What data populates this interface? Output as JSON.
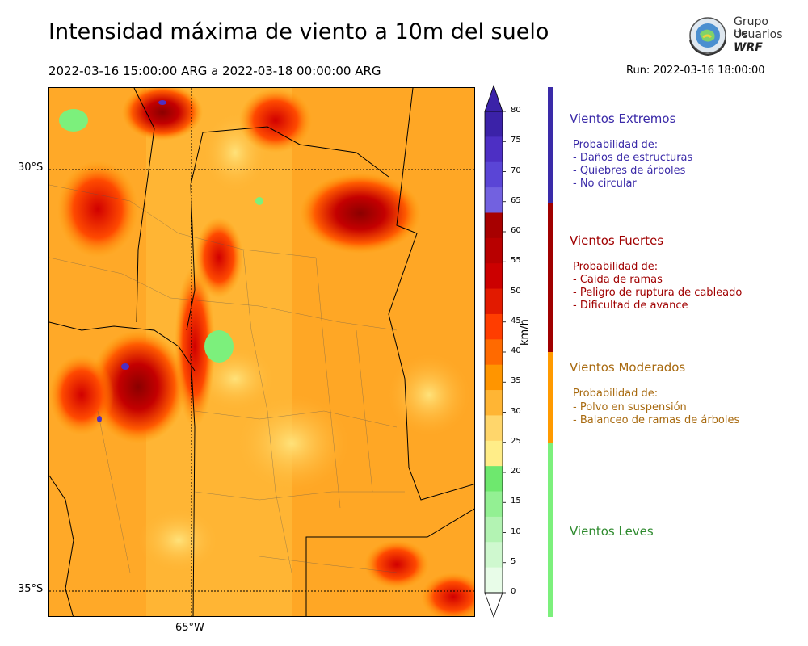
{
  "title": "Intensidad máxima de viento a 10m del suelo",
  "subtitle": "2022-03-16 15:00:00 ARG  a  2022-03-18 00:00:00 ARG",
  "run": "Run: 2022-03-16 18:00:00",
  "logo": {
    "line1": "Grupo de",
    "line2": "Usuarios",
    "line3": "WRF"
  },
  "axes": {
    "lat_labels": [
      "30°S",
      "35°S"
    ],
    "lon_labels": [
      "65°W"
    ]
  },
  "colorbar": {
    "unit": "km/h",
    "ticks": [
      "80",
      "75",
      "70",
      "65",
      "60",
      "55",
      "50",
      "45",
      "40",
      "35",
      "30",
      "25",
      "20",
      "15",
      "10",
      "5",
      "0"
    ],
    "bands": [
      "#3b22a8",
      "#4d2fc4",
      "#5a45d6",
      "#7261e0",
      "#a70000",
      "#b80000",
      "#cc0000",
      "#e21a00",
      "#ff3d00",
      "#ff6a00",
      "#ff9500",
      "#ffb534",
      "#ffd66b",
      "#ffed88",
      "#6ee86e",
      "#93f093",
      "#b3f3b3",
      "#cff8cf",
      "#e8fce8"
    ]
  },
  "categories": [
    {
      "title": "Vientos Extremos",
      "color": "#3a2aa8",
      "lines": [
        "Probabilidad de:",
        "- Daños de estructuras",
        "- Quiebres de árboles",
        "- No circular"
      ]
    },
    {
      "title": "Vientos Fuertes",
      "color": "#a00000",
      "lines": [
        "Probabilidad de:",
        "- Caida de ramas",
        "- Peligro de ruptura de cableado",
        "- Dificultad de avance"
      ]
    },
    {
      "title": "Vientos Moderados",
      "color": "#a86a10",
      "lines": [
        "Probabilidad de:",
        "- Polvo en suspensión",
        "- Balanceo de ramas de árboles"
      ]
    },
    {
      "title": "Vientos Leves",
      "color": "#2e8a2e",
      "lines": []
    }
  ],
  "legend_bar_colors": {
    "extremos": "#3a2aa8",
    "fuertes": "#a00000",
    "moderados": "#ff9a00",
    "leves": "#7cf07c"
  }
}
